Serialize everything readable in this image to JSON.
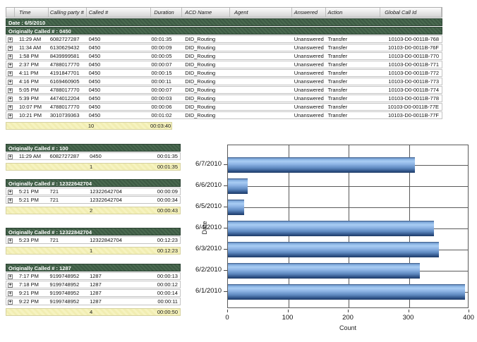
{
  "report": {
    "expand_icon": "+",
    "columns": [
      {
        "key": "expand",
        "label": ""
      },
      {
        "key": "time",
        "label": "Time"
      },
      {
        "key": "calling",
        "label": "Calling party #"
      },
      {
        "key": "called",
        "label": "Called #"
      },
      {
        "key": "duration",
        "label": "Duration"
      },
      {
        "key": "acd",
        "label": "ACD Name"
      },
      {
        "key": "agent",
        "label": "Agent"
      },
      {
        "key": "answered",
        "label": "Answered"
      },
      {
        "key": "action",
        "label": "Action"
      },
      {
        "key": "global",
        "label": "Global Call Id"
      }
    ],
    "date_header": "Date : 6/5/2010",
    "main_group": {
      "header": "Originally Called # : 0450",
      "rows": [
        [
          "11:29 AM",
          "6082727287",
          "0450",
          "00:01:35",
          "DID_Routing",
          "",
          "Unanswered",
          "Transfer",
          "10103-D0-0011B-768"
        ],
        [
          "11:34 AM",
          "6130629432",
          "0450",
          "00:00:09",
          "DID_Routing",
          "",
          "Unanswered",
          "Transfer",
          "10103-D0-0011B-76F"
        ],
        [
          "1:58 PM",
          "8439999581",
          "0450",
          "00:00:05",
          "DID_Routing",
          "",
          "Unanswered",
          "Transfer",
          "10103-D0-0011B-770"
        ],
        [
          "2:37 PM",
          "4788017770",
          "0450",
          "00:00:07",
          "DID_Routing",
          "",
          "Unanswered",
          "Transfer",
          "10103-D0-0011B-771"
        ],
        [
          "4:11 PM",
          "4191847701",
          "0450",
          "00:00:15",
          "DID_Routing",
          "",
          "Unanswered",
          "Transfer",
          "10103-D0-0011B-772"
        ],
        [
          "4:16 PM",
          "6169460905",
          "0450",
          "00:00:11",
          "DID_Routing",
          "",
          "Unanswered",
          "Transfer",
          "10103-D0-0011B-773"
        ],
        [
          "5:05 PM",
          "4788017770",
          "0450",
          "00:00:07",
          "DID_Routing",
          "",
          "Unanswered",
          "Transfer",
          "10103-D0-0011B-774"
        ],
        [
          "5:39 PM",
          "4474012204",
          "0450",
          "00:00:03",
          "DID_Routing",
          "",
          "Unanswered",
          "Transfer",
          "10103-D0-0011B-778"
        ],
        [
          "10:07 PM",
          "4788017770",
          "0450",
          "00:00:06",
          "DID_Routing",
          "",
          "Unanswered",
          "Transfer",
          "10103-D0-0011B-77E"
        ],
        [
          "10:21 PM",
          "3010739363",
          "0450",
          "00:01:02",
          "DID_Routing",
          "",
          "Unanswered",
          "Transfer",
          "10103-D0-0011B-77F"
        ]
      ],
      "summary": {
        "count": "10",
        "duration": "00:03:40"
      }
    },
    "groups": [
      {
        "header": "Originally Called # : 100",
        "rows": [
          [
            "11:29 AM",
            "6082727287",
            "0450",
            "00:01:35"
          ]
        ],
        "summary": {
          "count": "1",
          "duration": "00:01:35"
        }
      },
      {
        "header": "Originally Called # : 12322642704",
        "rows": [
          [
            "5:21 PM",
            "721",
            "12322642704",
            "00:00:09"
          ],
          [
            "5:21 PM",
            "721",
            "12322642704",
            "00:00:34"
          ]
        ],
        "summary": {
          "count": "2",
          "duration": "00:00:43"
        }
      },
      {
        "header": "Originally Called # : 12322842704",
        "rows": [
          [
            "5:23 PM",
            "721",
            "12322842704",
            "00:12:23"
          ]
        ],
        "summary": {
          "count": "1",
          "duration": "00:12:23"
        }
      },
      {
        "header": "Originally Called # : 1287",
        "rows": [
          [
            "7:17 PM",
            "9199748952",
            "1287",
            "00:00:13"
          ],
          [
            "7:18 PM",
            "9199748952",
            "1287",
            "00:00:12"
          ],
          [
            "9:21 PM",
            "9199748952",
            "1287",
            "00:00:14"
          ],
          [
            "9:22 PM",
            "9199748952",
            "1287",
            "00:00:11"
          ]
        ],
        "summary": {
          "count": "4",
          "duration": "00:00:50"
        }
      }
    ]
  },
  "chart_data": {
    "type": "bar",
    "orientation": "horizontal",
    "title": "",
    "categories": [
      "6/7/2010",
      "6/6/2010",
      "6/5/2010",
      "6/4/2010",
      "6/3/2010",
      "6/2/2010",
      "6/1/2010"
    ],
    "values": [
      310,
      33,
      27,
      342,
      350,
      318,
      393
    ],
    "xlabel": "Count",
    "ylabel": "Date",
    "xlim": [
      0,
      400
    ],
    "xticks": [
      0,
      100,
      200,
      300,
      400
    ],
    "grid": true,
    "legend": false,
    "bar_color": "#84aede",
    "colors": {
      "group_band_green": "#44624a",
      "summary_yellow": "#f4f0ba",
      "grid_line": "#5a5a5a"
    }
  }
}
